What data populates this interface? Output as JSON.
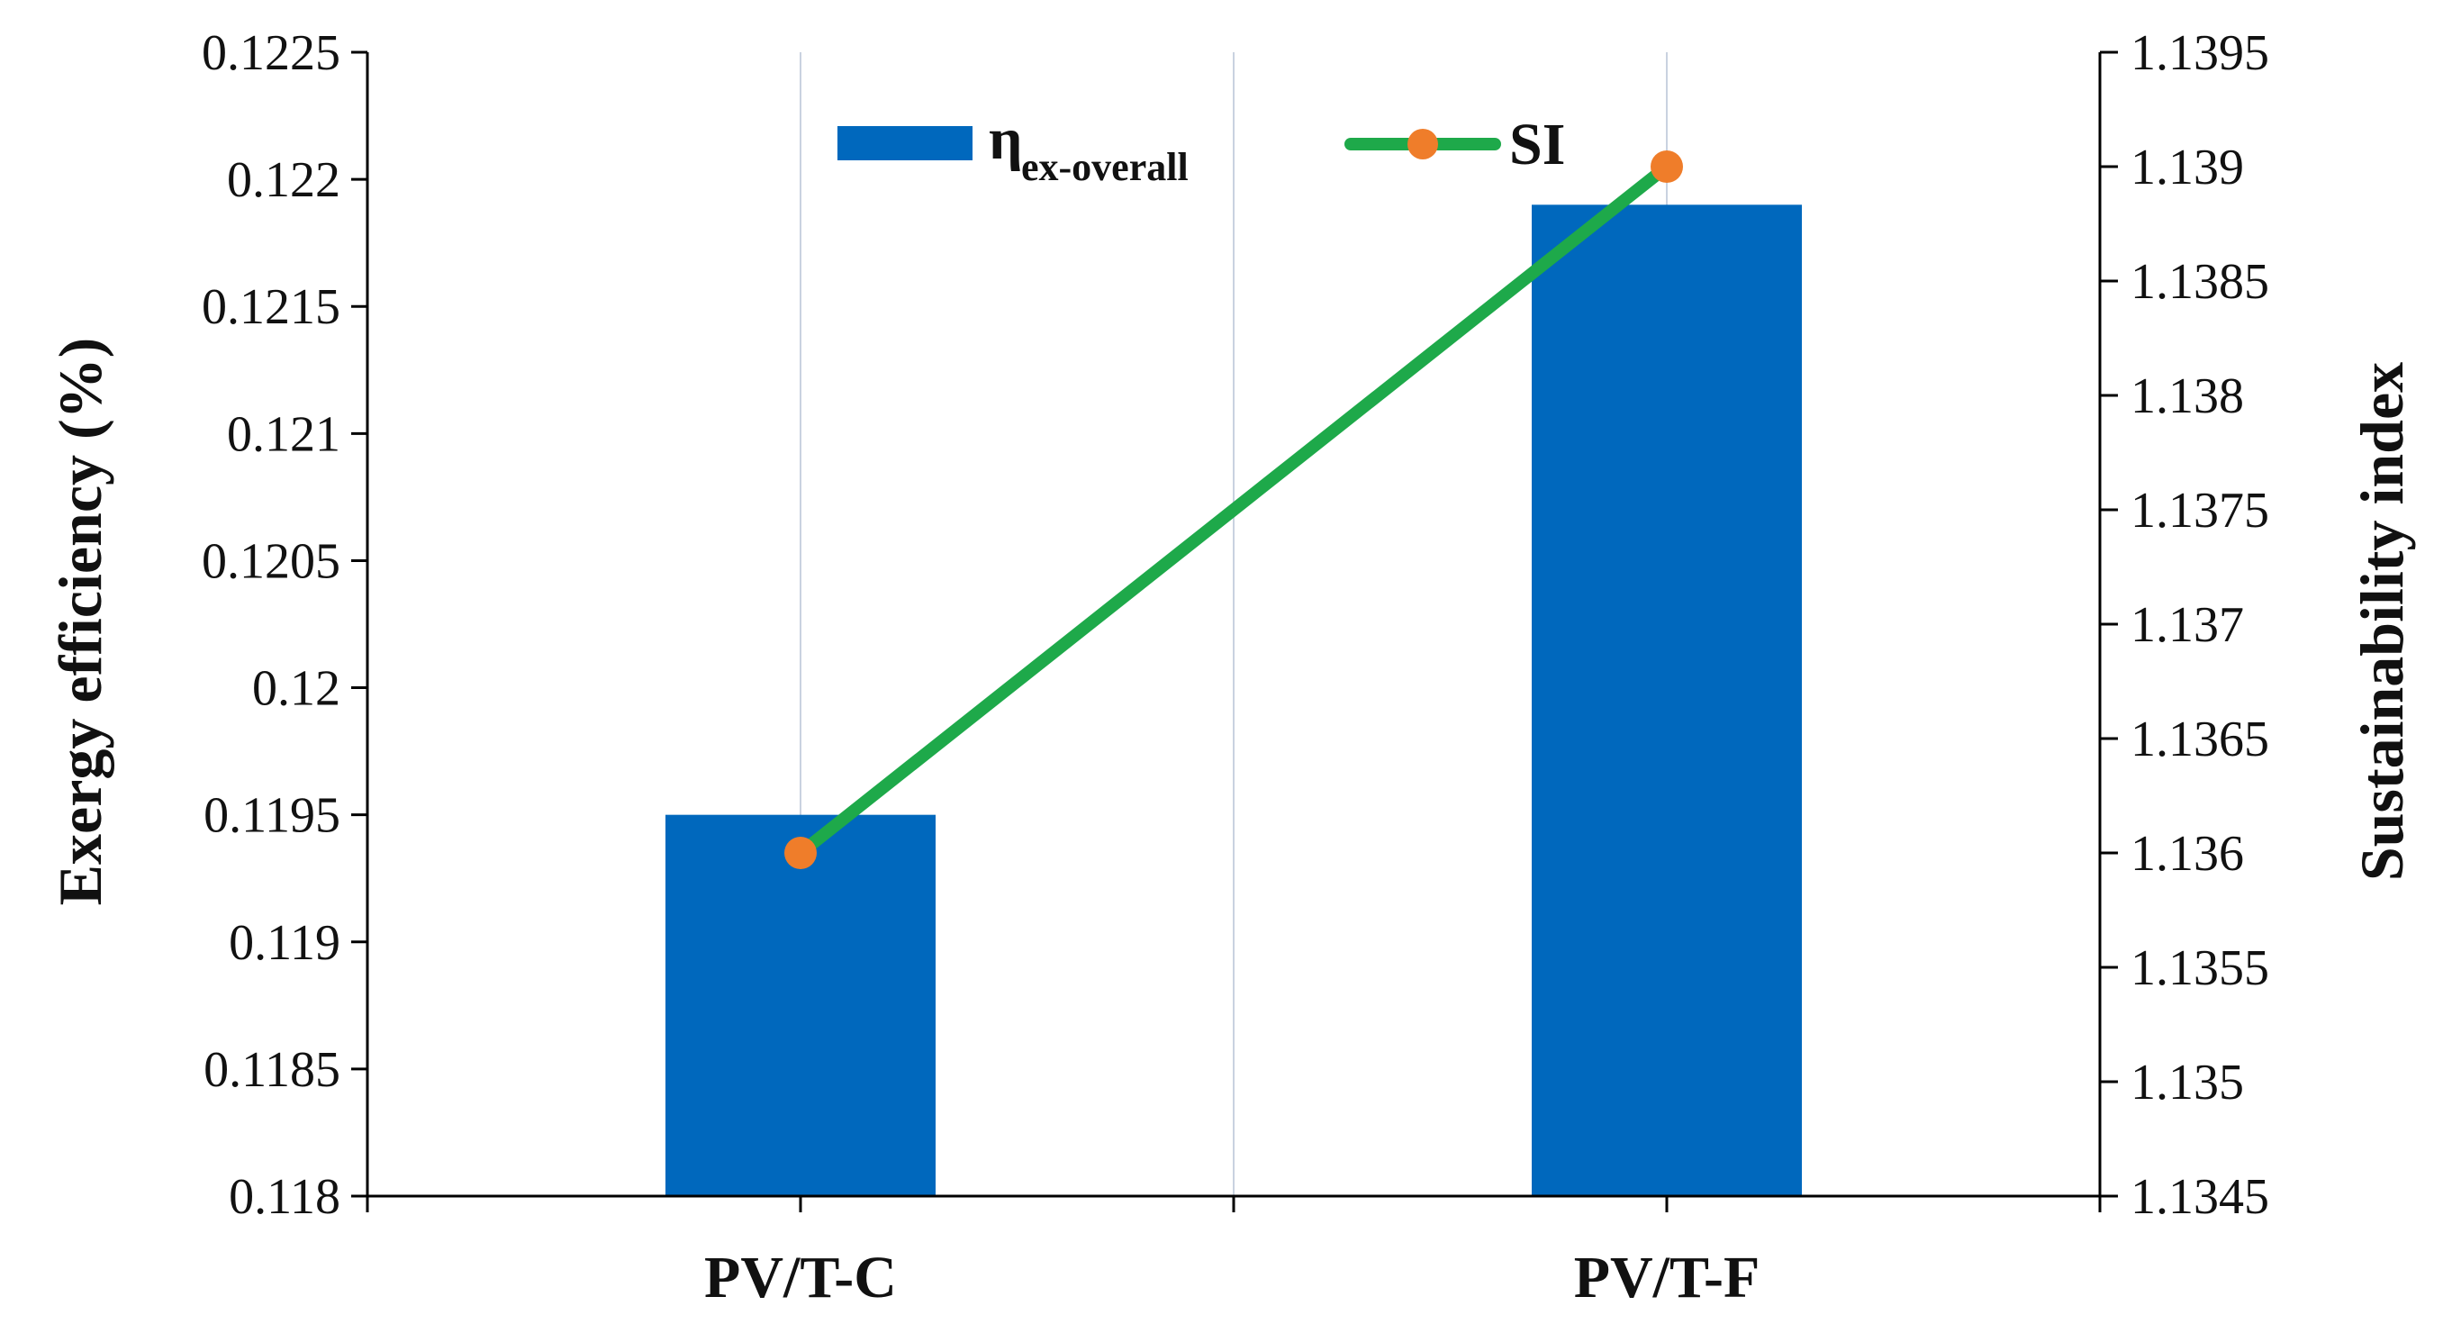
{
  "chart_data": {
    "type": "bar",
    "categories": [
      "PV/T-C",
      "PV/T-F"
    ],
    "series": [
      {
        "name": "η",
        "name_subscript": "ex-overall",
        "axis": "left",
        "chart_type": "bar",
        "values": [
          0.1195,
          0.1219
        ],
        "color": "#0068bd"
      },
      {
        "name": "SI",
        "axis": "right",
        "chart_type": "line",
        "values": [
          1.136,
          1.139
        ],
        "line_color": "#1ea94a",
        "marker_color": "#ef7d2a"
      }
    ],
    "ylabel": "Exergy efficiency (%)",
    "ylabel_right": "Sustainability index",
    "ylim": [
      0.118,
      0.1225
    ],
    "ylim_right": [
      1.1345,
      1.1395
    ],
    "yticks": [
      "0.118",
      "0.1185",
      "0.119",
      "0.1195",
      "0.12",
      "0.1205",
      "0.121",
      "0.1215",
      "0.122",
      "0.1225"
    ],
    "yticks_right": [
      "1.1345",
      "1.135",
      "1.1355",
      "1.136",
      "1.1365",
      "1.137",
      "1.1375",
      "1.138",
      "1.1385",
      "1.139",
      "1.1395"
    ],
    "grid": "vertical",
    "legend_position": "top-center"
  }
}
